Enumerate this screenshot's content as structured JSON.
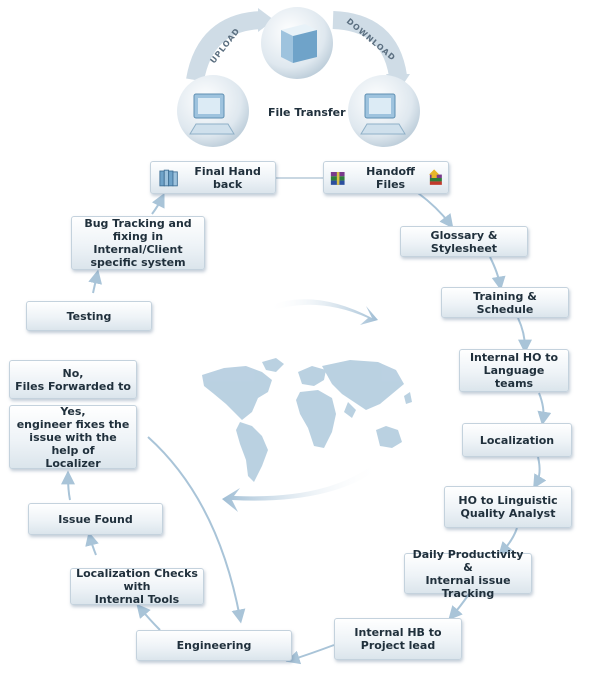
{
  "header": {
    "file_transfer": "File Transfer",
    "upload": "UPLOAD",
    "download": "DOWNLOAD"
  },
  "steps": {
    "final_hand_back": "Final Hand back",
    "handoff_files": "Handoff Files",
    "glossary": "Glossary & Stylesheet",
    "training": "Training & Schedule",
    "internal_ho": "Internal HO to\nLanguage teams",
    "localization": "Localization",
    "ho_lqa": "HO to Linguistic\nQuality Analyst",
    "daily_productivity": "Daily Productivity &\nInternal issue Tracking",
    "internal_hb": "Internal HB to\nProject lead",
    "engineering": "Engineering",
    "loc_checks": "Localization Checks with\nInternal Tools",
    "issue_found": "Issue Found",
    "yes_fix": "Yes,\nengineer fixes the\nissue with the help of\nLocalizer",
    "no_forward": "No,\nFiles Forwarded to",
    "testing": "Testing",
    "bug_tracking": "Bug Tracking and\nfixing in Internal/Client\nspecific system"
  },
  "colors": {
    "arrow": "#a9c4d8",
    "map": "#b7cfe0",
    "box_border": "#c4d2dd",
    "text": "#20303c"
  },
  "icons": [
    "server-icon",
    "computer-icon",
    "books-icon",
    "archive-files-icon",
    "globe-map-icon"
  ]
}
